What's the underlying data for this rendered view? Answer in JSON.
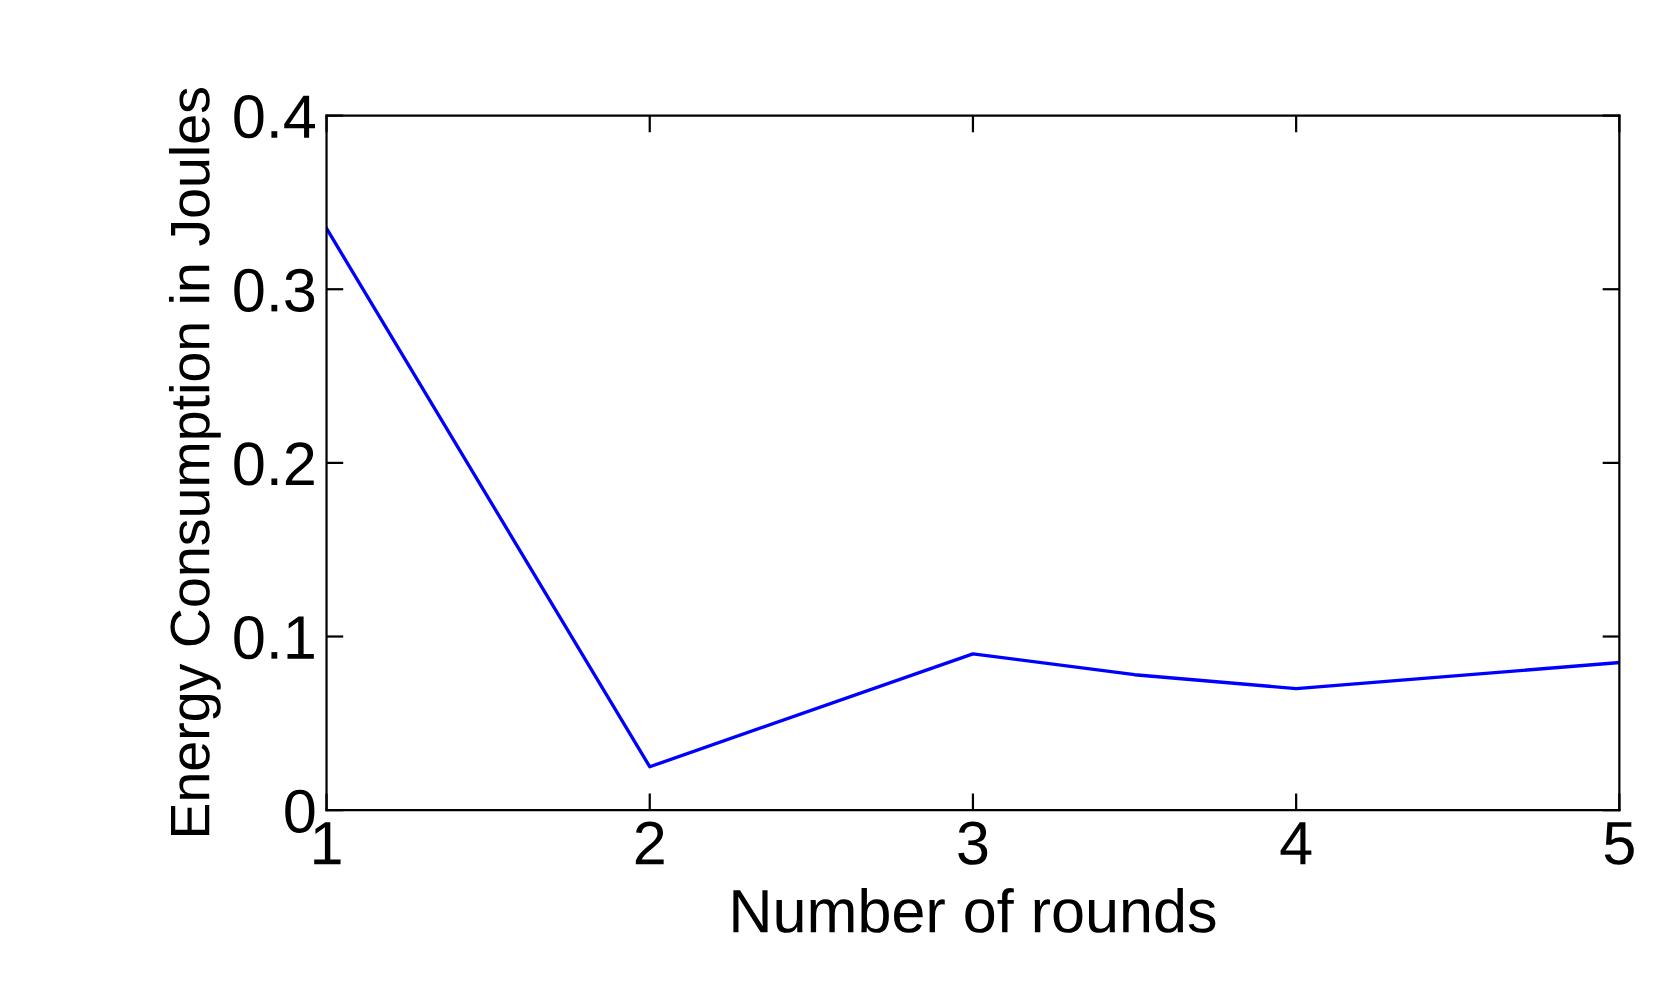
{
  "chart_data": {
    "type": "line",
    "xlabel": "Number of rounds",
    "ylabel": "Energy Consumption in Joules",
    "x": [
      1,
      2,
      3,
      3.5,
      4,
      5
    ],
    "series": [
      {
        "color": "#0000ff",
        "values": [
          0.335,
          0.025,
          0.09,
          0.078,
          0.07,
          0.085
        ]
      }
    ],
    "xlim": [
      1,
      5
    ],
    "xticks": [
      1,
      2,
      3,
      4,
      5
    ],
    "ylim": [
      0,
      0.4
    ],
    "yticks": [
      0,
      0.1,
      0.2,
      0.3,
      0.4
    ],
    "grid": false,
    "legend": false,
    "marker": "none",
    "line_style": "solid"
  }
}
